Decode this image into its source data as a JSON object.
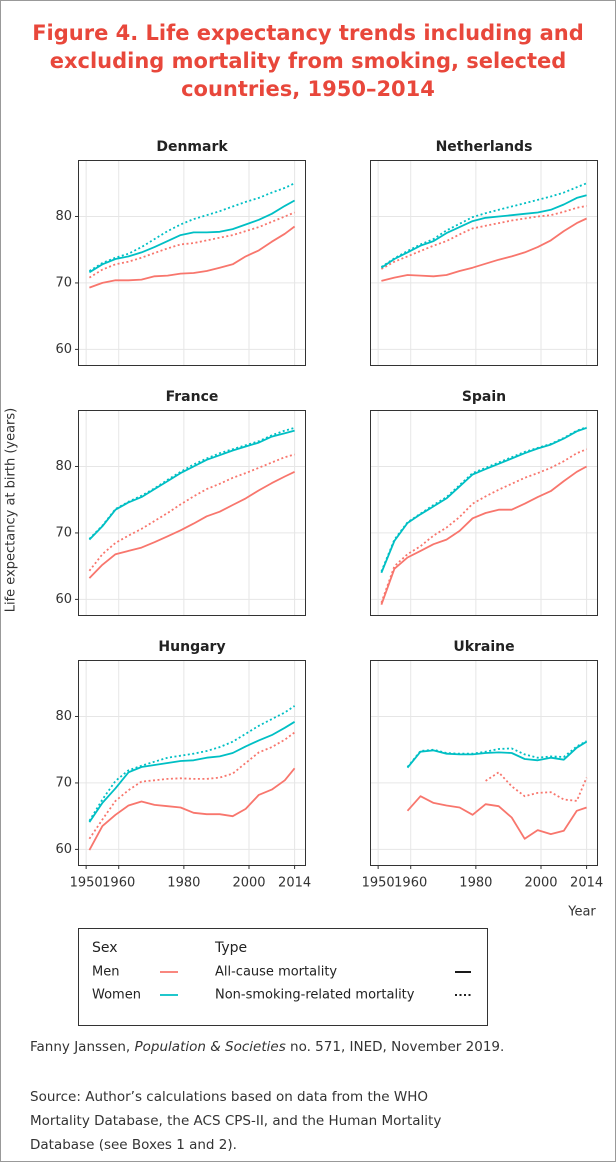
{
  "title_lines": [
    "Figure 4. Life expectancy trends including and",
    "excluding mortality from smoking, selected",
    "countries, 1950–2014"
  ],
  "y_label": "Life  expectancy at birth (years)",
  "x_label": "Year",
  "legend": {
    "sex_title": "Sex",
    "type_title": "Type",
    "sexes": [
      {
        "label": "Men",
        "color": "#f8766d"
      },
      {
        "label": "Women",
        "color": "#00bfc4"
      }
    ],
    "types": [
      {
        "label": "All-cause mortality",
        "dashed": false
      },
      {
        "label": "Non-smoking-related mortality",
        "dashed": true
      }
    ]
  },
  "citation": {
    "author": "Fanny Janssen, ",
    "journal": "Population & Societies",
    "rest": " no. 571, INED, November 2019."
  },
  "source_lines": [
    "Source: Author’s calculations based on data from the WHO",
    "Mortality Database, the ACS CPS-II, and the Human Mortality",
    "Database (see Boxes 1 and 2)."
  ],
  "chart_data": [
    {
      "type": "line",
      "title": "Denmark",
      "x": [
        1951,
        1955,
        1959,
        1963,
        1967,
        1971,
        1975,
        1979,
        1983,
        1987,
        1991,
        1995,
        1999,
        2003,
        2007,
        2011,
        2014
      ],
      "xlim": [
        1947.5,
        2017.5
      ],
      "ylim": [
        57.5,
        88.5
      ],
      "xticks": [
        1950,
        1960,
        1980,
        2000,
        2014
      ],
      "yticks": [
        60,
        70,
        80
      ],
      "grid": true,
      "series": [
        {
          "color": "#f8766d",
          "dashed": false,
          "values": [
            69.3,
            70,
            70.4,
            70.4,
            70.5,
            71,
            71.1,
            71.4,
            71.5,
            71.8,
            72.3,
            72.8,
            74,
            74.9,
            76.2,
            77.4,
            78.5
          ]
        },
        {
          "color": "#f8766d",
          "dashed": true,
          "values": [
            70.8,
            72,
            72.8,
            73.2,
            73.8,
            74.5,
            75.2,
            75.8,
            76,
            76.4,
            76.8,
            77.2,
            77.8,
            78.4,
            79.2,
            80,
            80.6
          ]
        },
        {
          "color": "#00bfc4",
          "dashed": false,
          "values": [
            71.6,
            72.8,
            73.6,
            74,
            74.6,
            75.4,
            76.3,
            77.2,
            77.6,
            77.6,
            77.7,
            78.1,
            78.8,
            79.5,
            80.4,
            81.6,
            82.4
          ]
        },
        {
          "color": "#00bfc4",
          "dashed": true,
          "values": [
            71.8,
            73,
            73.8,
            74.4,
            75.4,
            76.6,
            77.8,
            78.8,
            79.6,
            80.2,
            80.8,
            81.5,
            82.2,
            82.8,
            83.6,
            84.3,
            85
          ]
        }
      ]
    },
    {
      "type": "line",
      "title": "Netherlands",
      "x": [
        1951,
        1955,
        1959,
        1963,
        1967,
        1971,
        1975,
        1979,
        1983,
        1987,
        1991,
        1995,
        1999,
        2003,
        2007,
        2011,
        2014
      ],
      "xlim": [
        1947.5,
        2017.5
      ],
      "ylim": [
        57.5,
        88.5
      ],
      "xticks": [
        1950,
        1960,
        1980,
        2000,
        2014
      ],
      "yticks": [
        60,
        70,
        80
      ],
      "grid": true,
      "series": [
        {
          "color": "#f8766d",
          "dashed": false,
          "values": [
            70.3,
            70.8,
            71.2,
            71.1,
            71,
            71.2,
            71.8,
            72.3,
            72.9,
            73.5,
            74,
            74.6,
            75.4,
            76.4,
            77.8,
            79,
            79.7
          ]
        },
        {
          "color": "#f8766d",
          "dashed": true,
          "values": [
            72.1,
            73.2,
            74,
            74.8,
            75.6,
            76.3,
            77.3,
            78.2,
            78.6,
            79,
            79.4,
            79.7,
            80,
            80.2,
            80.7,
            81.3,
            81.6
          ]
        },
        {
          "color": "#00bfc4",
          "dashed": false,
          "values": [
            72.3,
            73.6,
            74.6,
            75.6,
            76.3,
            77.5,
            78.4,
            79.3,
            79.8,
            80,
            80.2,
            80.4,
            80.6,
            81,
            81.8,
            82.8,
            83.2
          ]
        },
        {
          "color": "#00bfc4",
          "dashed": true,
          "values": [
            72.4,
            73.7,
            74.8,
            75.8,
            76.6,
            77.9,
            78.9,
            79.9,
            80.5,
            81,
            81.5,
            82,
            82.5,
            83,
            83.6,
            84.4,
            85
          ]
        }
      ]
    },
    {
      "type": "line",
      "title": "France",
      "x": [
        1951,
        1955,
        1959,
        1963,
        1967,
        1971,
        1975,
        1979,
        1983,
        1987,
        1991,
        1995,
        1999,
        2003,
        2007,
        2011,
        2014
      ],
      "xlim": [
        1947.5,
        2017.5
      ],
      "ylim": [
        57.5,
        88.5
      ],
      "xticks": [
        1950,
        1960,
        1980,
        2000,
        2014
      ],
      "yticks": [
        60,
        70,
        80
      ],
      "grid": true,
      "series": [
        {
          "color": "#f8766d",
          "dashed": false,
          "values": [
            63.2,
            65.2,
            66.8,
            67.3,
            67.8,
            68.6,
            69.5,
            70.4,
            71.4,
            72.5,
            73.2,
            74.2,
            75.2,
            76.4,
            77.5,
            78.5,
            79.2
          ]
        },
        {
          "color": "#f8766d",
          "dashed": true,
          "values": [
            64.3,
            66.8,
            68.5,
            69.6,
            70.6,
            71.8,
            73,
            74.3,
            75.5,
            76.6,
            77.4,
            78.3,
            79,
            79.8,
            80.6,
            81.4,
            81.8
          ]
        },
        {
          "color": "#00bfc4",
          "dashed": false,
          "values": [
            69,
            71,
            73.5,
            74.6,
            75.4,
            76.6,
            77.8,
            79,
            80,
            81,
            81.7,
            82.4,
            83,
            83.6,
            84.5,
            85,
            85.4
          ]
        },
        {
          "color": "#00bfc4",
          "dashed": true,
          "values": [
            69.1,
            71.1,
            73.6,
            74.7,
            75.6,
            76.7,
            78,
            79.2,
            80.3,
            81.2,
            82,
            82.6,
            83.2,
            83.8,
            84.7,
            85.4,
            85.8
          ]
        }
      ]
    },
    {
      "type": "line",
      "title": "Spain",
      "x": [
        1951,
        1955,
        1959,
        1963,
        1967,
        1971,
        1975,
        1979,
        1983,
        1987,
        1991,
        1995,
        1999,
        2003,
        2007,
        2011,
        2014
      ],
      "xlim": [
        1947.5,
        2017.5
      ],
      "ylim": [
        57.5,
        88.5
      ],
      "xticks": [
        1950,
        1960,
        1980,
        2000,
        2014
      ],
      "yticks": [
        60,
        70,
        80
      ],
      "grid": true,
      "series": [
        {
          "color": "#f8766d",
          "dashed": false,
          "values": [
            59.2,
            64.6,
            66.3,
            67.3,
            68.3,
            69,
            70.3,
            72.2,
            73,
            73.5,
            73.5,
            74.4,
            75.4,
            76.3,
            77.8,
            79.2,
            80
          ]
        },
        {
          "color": "#f8766d",
          "dashed": true,
          "values": [
            59.5,
            65,
            66.8,
            68,
            69.6,
            70.8,
            72.4,
            74.4,
            75.5,
            76.5,
            77.4,
            78.3,
            79,
            79.8,
            80.8,
            82,
            82.6
          ]
        },
        {
          "color": "#00bfc4",
          "dashed": false,
          "values": [
            64,
            68.8,
            71.5,
            72.8,
            74,
            75.2,
            77,
            78.8,
            79.6,
            80.4,
            81.2,
            82,
            82.7,
            83.3,
            84.2,
            85.3,
            85.8
          ]
        },
        {
          "color": "#00bfc4",
          "dashed": true,
          "values": [
            64.2,
            69,
            71.6,
            72.9,
            74.2,
            75.4,
            77.2,
            79,
            79.8,
            80.6,
            81.4,
            82.2,
            82.8,
            83.4,
            84.3,
            85.4,
            85.9
          ]
        }
      ]
    },
    {
      "type": "line",
      "title": "Hungary",
      "x": [
        1951,
        1955,
        1959,
        1963,
        1967,
        1971,
        1975,
        1979,
        1983,
        1987,
        1991,
        1995,
        1999,
        2003,
        2007,
        2011,
        2014
      ],
      "xlim": [
        1947.5,
        2017.5
      ],
      "ylim": [
        57.5,
        88.5
      ],
      "xticks": [
        1950,
        1960,
        1980,
        2000,
        2014
      ],
      "yticks": [
        60,
        70,
        80
      ],
      "grid": true,
      "series": [
        {
          "color": "#f8766d",
          "dashed": false,
          "values": [
            59.9,
            63.5,
            65.2,
            66.6,
            67.2,
            66.7,
            66.5,
            66.3,
            65.5,
            65.3,
            65.3,
            65,
            66.1,
            68.2,
            69,
            70.4,
            72.2
          ]
        },
        {
          "color": "#f8766d",
          "dashed": true,
          "values": [
            61.6,
            64.5,
            67.3,
            68.9,
            70.2,
            70.4,
            70.6,
            70.7,
            70.6,
            70.6,
            70.8,
            71.4,
            73,
            74.6,
            75.4,
            76.5,
            77.6
          ]
        },
        {
          "color": "#00bfc4",
          "dashed": false,
          "values": [
            64.1,
            67,
            69.2,
            71.6,
            72.4,
            72.7,
            73,
            73.3,
            73.4,
            73.8,
            74,
            74.5,
            75.5,
            76.4,
            77.2,
            78.3,
            79.2
          ]
        },
        {
          "color": "#00bfc4",
          "dashed": true,
          "values": [
            64.3,
            67.5,
            70.3,
            71.9,
            72.6,
            73.2,
            73.8,
            74.1,
            74.4,
            74.8,
            75.4,
            76.2,
            77.4,
            78.6,
            79.6,
            80.6,
            81.6
          ]
        }
      ]
    },
    {
      "type": "line",
      "title": "Ukraine",
      "x": [
        1951,
        1955,
        1959,
        1963,
        1967,
        1971,
        1975,
        1979,
        1983,
        1987,
        1991,
        1995,
        1999,
        2003,
        2007,
        2011,
        2014
      ],
      "xlim": [
        1947.5,
        2017.5
      ],
      "ylim": [
        57.5,
        88.5
      ],
      "xticks": [
        1950,
        1960,
        1980,
        2000,
        2014
      ],
      "yticks": [
        60,
        70,
        80
      ],
      "grid": true,
      "series": [
        {
          "color": "#f8766d",
          "dashed": false,
          "values": [
            null,
            null,
            65.8,
            68,
            67,
            66.6,
            66.3,
            65.2,
            66.8,
            66.5,
            64.8,
            61.6,
            62.9,
            62.3,
            62.8,
            65.8,
            66.3
          ]
        },
        {
          "color": "#f8766d",
          "dashed": true,
          "values": [
            null,
            null,
            null,
            null,
            null,
            null,
            null,
            null,
            70.3,
            71.6,
            69.5,
            68,
            68.5,
            68.6,
            67.5,
            67.3,
            70.8
          ]
        },
        {
          "color": "#00bfc4",
          "dashed": false,
          "values": [
            null,
            null,
            72.3,
            74.7,
            74.9,
            74.4,
            74.3,
            74.3,
            74.5,
            74.6,
            74.5,
            73.6,
            73.4,
            73.8,
            73.5,
            75.3,
            76.2
          ]
        },
        {
          "color": "#00bfc4",
          "dashed": true,
          "values": [
            null,
            null,
            72.4,
            74.8,
            75,
            74.5,
            74.4,
            74.4,
            74.7,
            75.1,
            75.2,
            74.3,
            73.8,
            74,
            73.9,
            75.5,
            76.3
          ]
        }
      ]
    }
  ]
}
